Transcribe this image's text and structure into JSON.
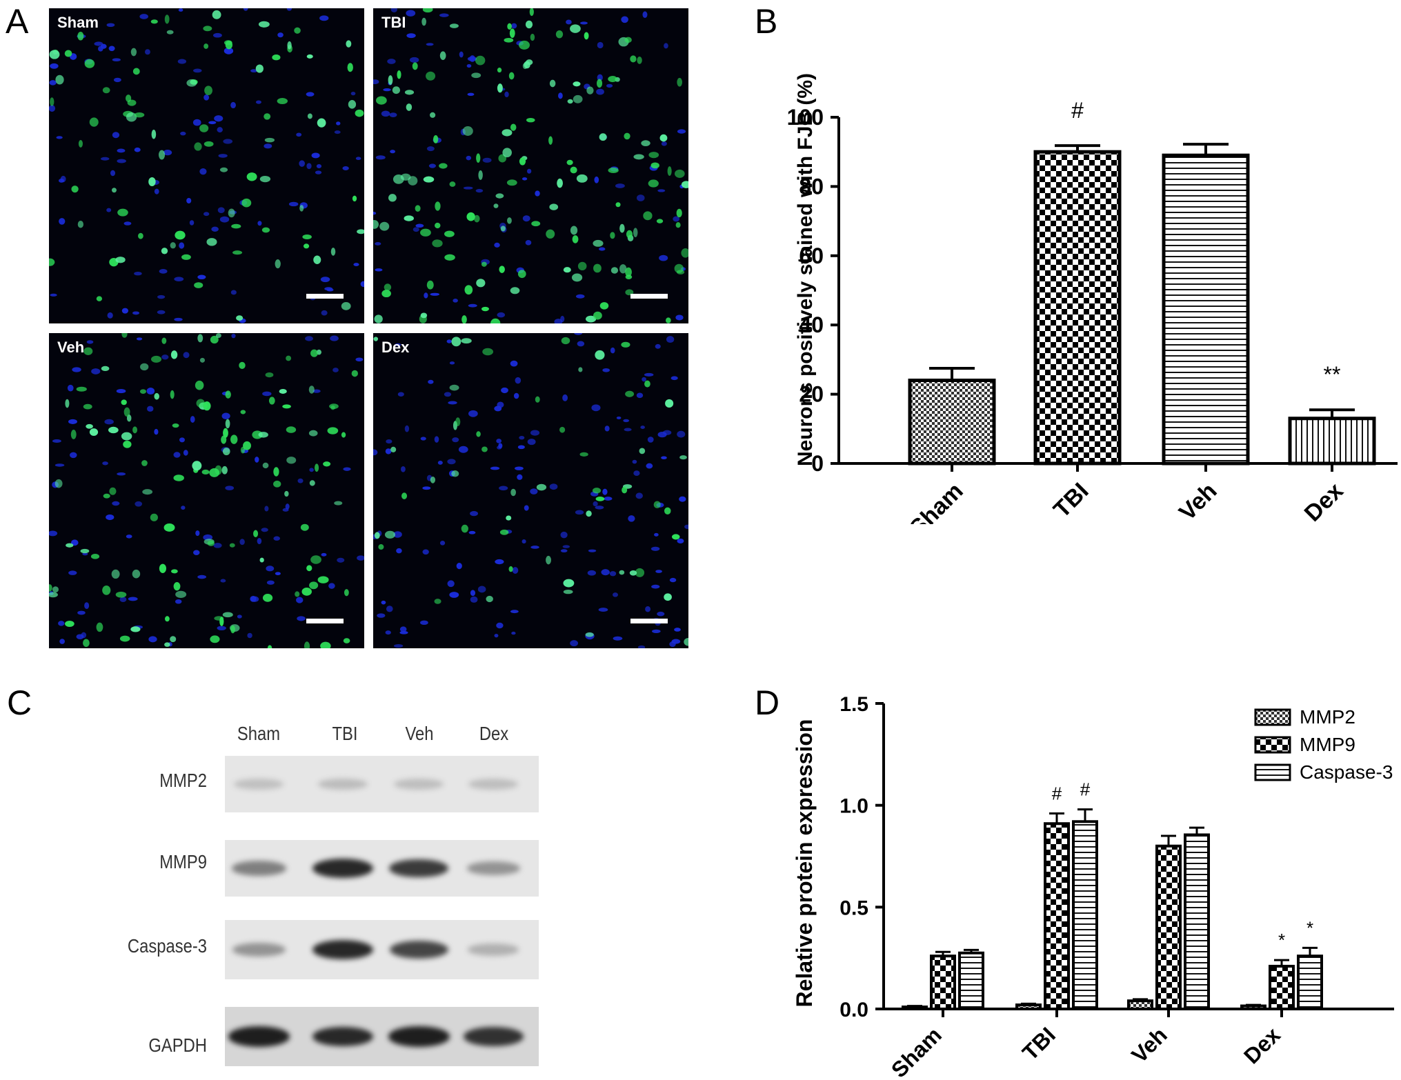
{
  "panels": {
    "a": "A",
    "b": "B",
    "c": "C",
    "d": "D"
  },
  "panel_a": {
    "images": [
      {
        "label": "Sham",
        "green_density": 0.55,
        "blue_density": 0.6
      },
      {
        "label": "TBI",
        "green_density": 0.95,
        "blue_density": 0.5
      },
      {
        "label": "Veh",
        "green_density": 0.85,
        "blue_density": 0.55
      },
      {
        "label": "Dex",
        "green_density": 0.35,
        "blue_density": 0.85
      }
    ]
  },
  "panel_c": {
    "lanes": [
      "Sham",
      "TBI",
      "Veh",
      "Dex"
    ],
    "rows": [
      {
        "label": "MMP2",
        "intensities": [
          0.12,
          0.14,
          0.13,
          0.13
        ]
      },
      {
        "label": "MMP9",
        "intensities": [
          0.45,
          0.9,
          0.8,
          0.35
        ]
      },
      {
        "label": "Caspase-3",
        "intensities": [
          0.35,
          0.9,
          0.75,
          0.2
        ]
      },
      {
        "label": "GAPDH",
        "intensities": [
          0.95,
          0.9,
          0.95,
          0.85
        ]
      }
    ]
  },
  "chart_data": [
    {
      "type": "bar",
      "panel": "B",
      "categories": [
        "Sham",
        "TBI",
        "Veh",
        "Dex"
      ],
      "values": [
        24,
        90,
        89,
        13
      ],
      "errors": [
        3.5,
        1.8,
        3.2,
        2.5
      ],
      "annotations": [
        "",
        "#",
        "",
        "**"
      ],
      "ylabel": "Neurons positively stained with FJB (%)",
      "xlabel": "",
      "ylim": [
        0,
        100
      ],
      "yticks": [
        "0",
        "20",
        "40",
        "60",
        "80",
        "100"
      ],
      "patterns": [
        "small-checker",
        "large-checker",
        "horizontal-lines",
        "vertical-lines"
      ]
    },
    {
      "type": "bar",
      "panel": "D",
      "categories": [
        "Sham",
        "TBI",
        "Veh",
        "Dex"
      ],
      "series": [
        {
          "name": "MMP2",
          "values": [
            0.01,
            0.02,
            0.04,
            0.015
          ],
          "errors": [
            0.005,
            0.006,
            0.008,
            0.005
          ],
          "annotations": [
            "",
            "",
            "",
            ""
          ],
          "pattern": "small-checker"
        },
        {
          "name": "MMP9",
          "values": [
            0.26,
            0.91,
            0.8,
            0.21
          ],
          "errors": [
            0.02,
            0.05,
            0.05,
            0.03
          ],
          "annotations": [
            "",
            "#",
            "",
            "*"
          ],
          "pattern": "large-checker"
        },
        {
          "name": "Caspase-3",
          "values": [
            0.275,
            0.92,
            0.855,
            0.26
          ],
          "errors": [
            0.015,
            0.06,
            0.035,
            0.04
          ],
          "annotations": [
            "",
            "#",
            "",
            "*"
          ],
          "pattern": "horizontal-lines"
        }
      ],
      "ylabel": "Relative protein expression",
      "xlabel": "",
      "ylim": [
        0,
        1.5
      ],
      "yticks": [
        "0.0",
        "0.5",
        "1.0",
        "1.5"
      ],
      "legend_position": "top-right"
    }
  ]
}
